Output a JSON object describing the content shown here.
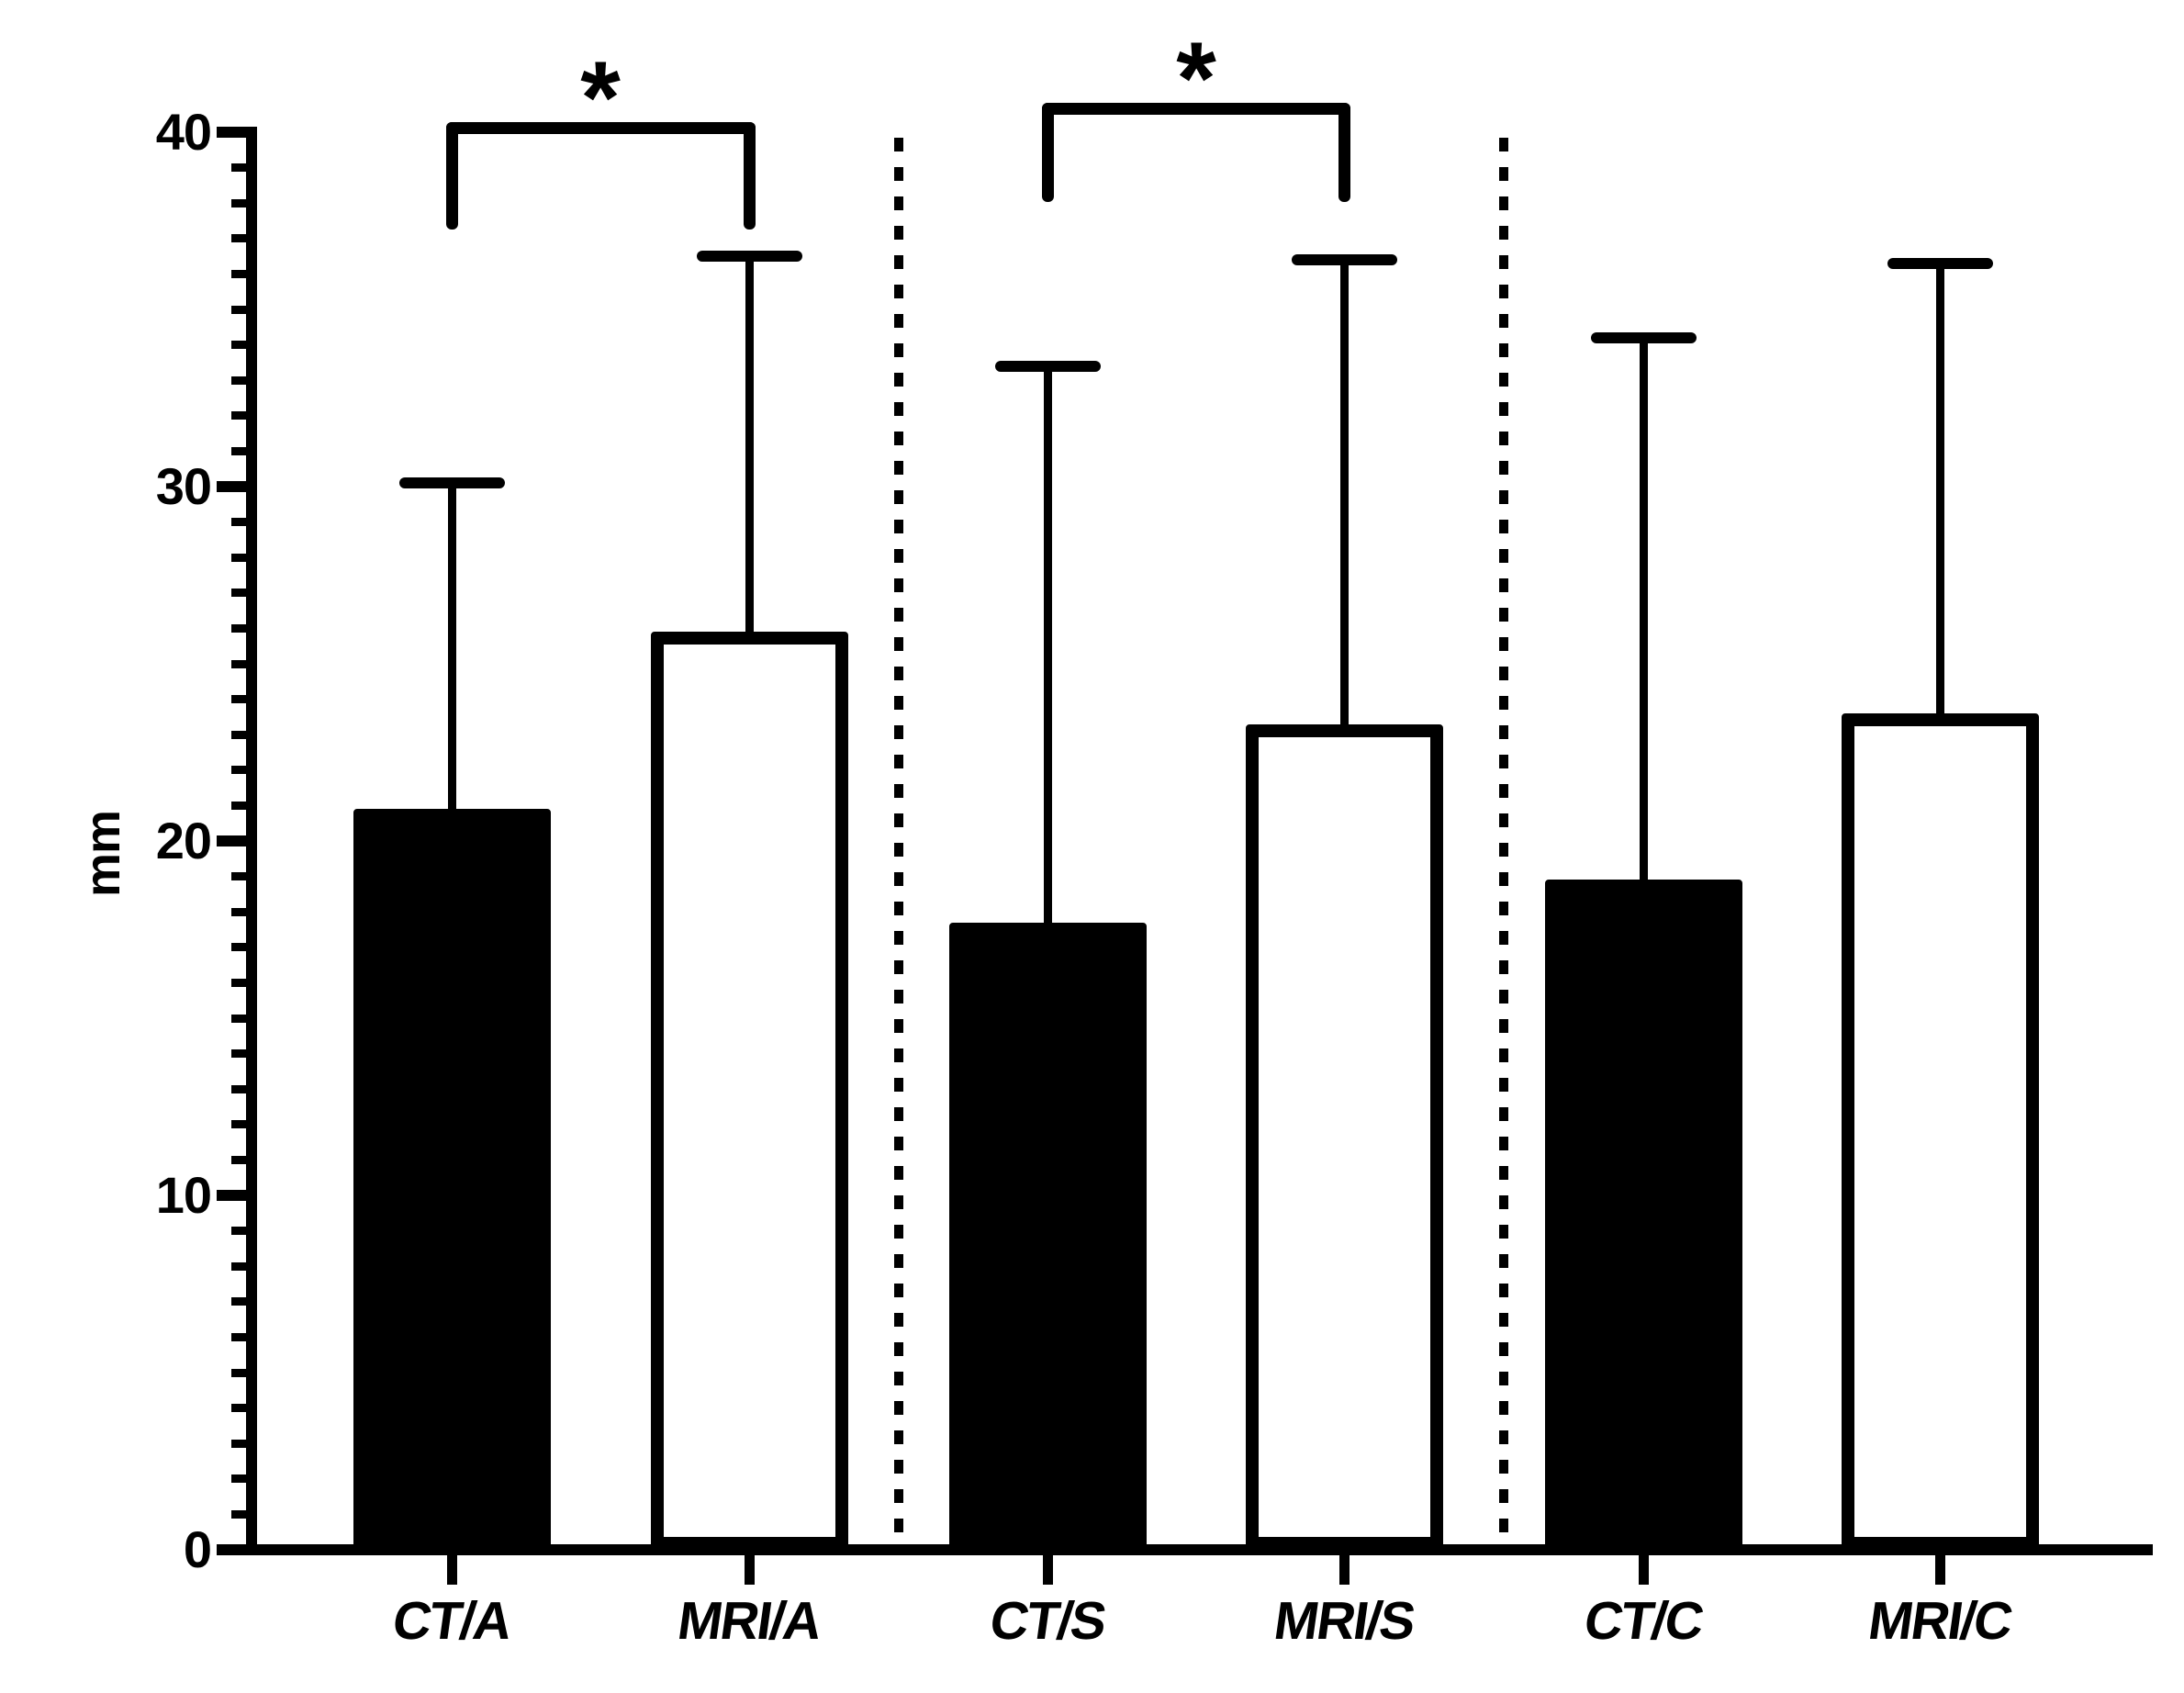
{
  "figure": {
    "background": "#ffffff",
    "ink_color": "#000000"
  },
  "chart_data": {
    "type": "bar",
    "title": "",
    "xlabel": "",
    "ylabel": "mm",
    "ylim": [
      0,
      40
    ],
    "yticks": [
      0,
      10,
      20,
      30,
      40
    ],
    "ytick_labels": [
      "0",
      "10",
      "20",
      "30",
      "40"
    ],
    "minor_tick_step": 1,
    "categories": [
      "CT/A",
      "MRI/A",
      "CT/S",
      "MRI/S",
      "CT/C",
      "MRI/C"
    ],
    "values": [
      20.9,
      25.9,
      17.7,
      23.3,
      18.9,
      23.6
    ],
    "error_bar_top": [
      30.1,
      36.5,
      33.4,
      36.4,
      34.2,
      36.3
    ],
    "bar_styles": [
      "filled",
      "open",
      "filled",
      "open",
      "filled",
      "open"
    ],
    "bar_colors": {
      "filled": "#000000",
      "open": "#ffffff"
    },
    "groups": [
      [
        "CT/A",
        "MRI/A"
      ],
      [
        "CT/S",
        "MRI/S"
      ],
      [
        "CT/C",
        "MRI/C"
      ]
    ],
    "group_separator_style": "dotted-vertical-line",
    "significance": [
      {
        "between": [
          "CT/A",
          "MRI/A"
        ],
        "label": "*"
      },
      {
        "between": [
          "CT/S",
          "MRI/S"
        ],
        "label": "*"
      }
    ],
    "legend": "none",
    "grid": false
  }
}
